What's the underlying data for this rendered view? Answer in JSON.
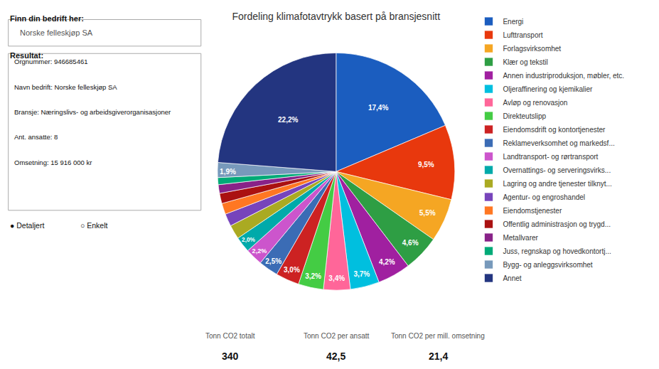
{
  "chart_data": {
    "type": "pie",
    "title": "Fordeling klimafotavtrykk basert på bransjesnitt",
    "categories": [
      "Energi",
      "Lufttransport",
      "Forlagsvirksomhet",
      "Klær og tekstil",
      "Annen industriproduksjon, møbler, etc.",
      "Oljeraffinering og kjemikalier",
      "Avløp og renovasjon",
      "Direkteutslipp",
      "Eiendomsdrift og kontortjenester",
      "Reklameverksomhet og markedsf...",
      "Landtransport- og rørtransport",
      "Overnattings- og serveringsvirks...",
      "Lagring og andre tjenester tilknyt...",
      "Agentur- og engroshandel",
      "Eiendomstjenester",
      "Offentlig administrasjon og trygd...",
      "Metallvarer",
      "Juss, regnskap og hovedkontortj...",
      "Bygg- og anleggsvirksomhet",
      "Annet"
    ],
    "values": [
      17.4,
      9.5,
      5.5,
      4.6,
      4.2,
      3.7,
      3.4,
      3.2,
      3.0,
      2.5,
      2.2,
      2.0,
      1.8,
      1.6,
      1.4,
      1.3,
      1.1,
      0.9,
      1.9,
      22.2
    ],
    "value_labels": [
      "17,4%",
      "9,5%",
      "5,5%",
      "4,6%",
      "4,2%",
      "3,7%",
      "3,4%",
      "3,2%",
      "3,0%",
      "2,5%",
      "2,2%",
      "2,0%",
      null,
      null,
      null,
      null,
      null,
      null,
      "1,9%",
      "22,2%"
    ],
    "colors": [
      "#1B5DBF",
      "#E8380D",
      "#F5A623",
      "#2E9E44",
      "#A020A0",
      "#00BFDF",
      "#FF6699",
      "#44CC44",
      "#CC2222",
      "#3B6CB5",
      "#CC55CC",
      "#00AAAA",
      "#AAAA22",
      "#7744BB",
      "#FF7722",
      "#AA1111",
      "#882288",
      "#00AA77",
      "#7799BB",
      "#233580"
    ],
    "data_labels": true,
    "legend": "right",
    "annotations": [
      "Finn din bedrift her:",
      "Norske felleskjøp SA",
      "Resultat:",
      "Orgnummer: 946685461",
      "Navn bedrift: Norske felleskjøp SA",
      "Bransje: Næringslivs- og arbeidsgiverorganisasjoner",
      "Ant. ansatte: 8",
      "Omsetning: 15 916 000 kr",
      "● Detaljert",
      "○ Enkelt",
      "Tonn CO2 totalt",
      "340",
      "Tonn CO2 per ansatt",
      "42,5",
      "Tonn CO2 per mill. omsetning",
      "21,4"
    ]
  }
}
